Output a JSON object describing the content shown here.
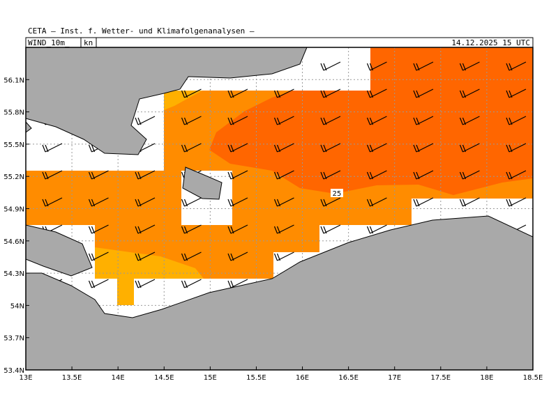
{
  "header": {
    "institute": "CETA — Inst. f. Wetter- und Klimafolgenanalysen —",
    "field": "WIND_10m_",
    "unit": "kn",
    "valid_time": "14.12.2025 15 UTC"
  },
  "map": {
    "contour_label": 25,
    "lon_range": [
      13,
      18.5
    ],
    "lat_range": [
      53.4,
      56.4
    ],
    "lon_ticks": [
      {
        "value": 13,
        "label": "13E"
      },
      {
        "value": 13.5,
        "label": "13.5E"
      },
      {
        "value": 14,
        "label": "14E"
      },
      {
        "value": 14.5,
        "label": "14.5E"
      },
      {
        "value": 15,
        "label": "15E"
      },
      {
        "value": 15.5,
        "label": "15.5E"
      },
      {
        "value": 16,
        "label": "16E"
      },
      {
        "value": 16.5,
        "label": "16.5E"
      },
      {
        "value": 17,
        "label": "17E"
      },
      {
        "value": 17.5,
        "label": "17.5E"
      },
      {
        "value": 18,
        "label": "18E"
      },
      {
        "value": 18.5,
        "label": "18.5E"
      }
    ],
    "lat_ticks": [
      {
        "value": 53.4,
        "label": "53.4N"
      },
      {
        "value": 53.7,
        "label": "53.7N"
      },
      {
        "value": 54,
        "label": "54N"
      },
      {
        "value": 54.3,
        "label": "54.3N"
      },
      {
        "value": 54.6,
        "label": "54.6N"
      },
      {
        "value": 54.9,
        "label": "54.9N"
      },
      {
        "value": 55.2,
        "label": "55.2N"
      },
      {
        "value": 55.5,
        "label": "55.5N"
      },
      {
        "value": 55.8,
        "label": "55.8N"
      },
      {
        "value": 56.1,
        "label": "56.1N"
      }
    ]
  }
}
